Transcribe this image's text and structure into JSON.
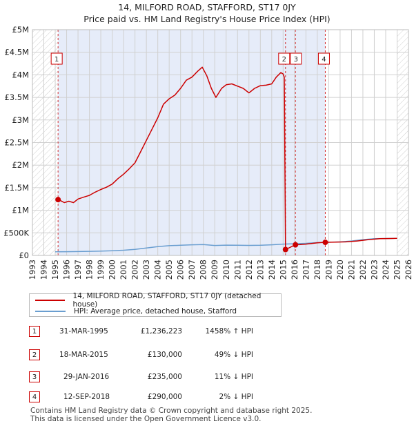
{
  "title": {
    "line1": "14, MILFORD ROAD, STAFFORD, ST17 0JY",
    "line2": "Price paid vs. HM Land Registry's House Price Index (HPI)"
  },
  "colors": {
    "property": "#cc0000",
    "hpi": "#6a9ed0",
    "shade": "#dde6f7",
    "grid": "#d0d0d0"
  },
  "chart_data": {
    "type": "line",
    "ylim": [
      0,
      5000000
    ],
    "xlim": [
      1993,
      2026
    ],
    "ytick_values": [
      0,
      500000,
      1000000,
      1500000,
      2000000,
      2500000,
      3000000,
      3500000,
      4000000,
      4500000,
      5000000
    ],
    "ytick_labels": [
      "£0",
      "£500K",
      "£1M",
      "£1.5M",
      "£2M",
      "£2.5M",
      "£3M",
      "£3.5M",
      "£4M",
      "£4.5M",
      "£5M"
    ],
    "xtick_labels": [
      "1993",
      "1994",
      "1995",
      "1996",
      "1997",
      "1998",
      "1999",
      "2000",
      "2001",
      "2002",
      "2003",
      "2004",
      "2005",
      "2006",
      "2007",
      "2008",
      "2009",
      "2010",
      "2011",
      "2012",
      "2013",
      "2014",
      "2015",
      "2016",
      "2017",
      "2018",
      "2019",
      "2020",
      "2021",
      "2022",
      "2023",
      "2024",
      "2025",
      "2026"
    ],
    "shaded_range": [
      1995.25,
      2018.7
    ],
    "hatched_ranges": [
      [
        1993,
        1995.25
      ],
      [
        2025.0,
        2026
      ]
    ],
    "series": [
      {
        "name": "14, MILFORD ROAD, STAFFORD, ST17 0JY (detached house)",
        "color": "#cc0000",
        "points": [
          [
            1995.25,
            1236223
          ],
          [
            1995.5,
            1210000
          ],
          [
            1995.8,
            1170000
          ],
          [
            1996.2,
            1200000
          ],
          [
            1996.6,
            1170000
          ],
          [
            1997.0,
            1250000
          ],
          [
            1997.5,
            1290000
          ],
          [
            1998.0,
            1330000
          ],
          [
            1998.5,
            1400000
          ],
          [
            1999.0,
            1460000
          ],
          [
            1999.5,
            1510000
          ],
          [
            2000.0,
            1580000
          ],
          [
            2000.5,
            1700000
          ],
          [
            2001.0,
            1800000
          ],
          [
            2001.5,
            1920000
          ],
          [
            2002.0,
            2050000
          ],
          [
            2002.5,
            2300000
          ],
          [
            2003.0,
            2550000
          ],
          [
            2003.5,
            2800000
          ],
          [
            2004.0,
            3050000
          ],
          [
            2004.5,
            3350000
          ],
          [
            2005.0,
            3470000
          ],
          [
            2005.5,
            3550000
          ],
          [
            2006.0,
            3700000
          ],
          [
            2006.5,
            3880000
          ],
          [
            2007.0,
            3950000
          ],
          [
            2007.5,
            4080000
          ],
          [
            2007.9,
            4170000
          ],
          [
            2008.3,
            3980000
          ],
          [
            2008.7,
            3700000
          ],
          [
            2009.1,
            3500000
          ],
          [
            2009.6,
            3700000
          ],
          [
            2010.0,
            3780000
          ],
          [
            2010.5,
            3800000
          ],
          [
            2011.0,
            3750000
          ],
          [
            2011.5,
            3700000
          ],
          [
            2012.0,
            3600000
          ],
          [
            2012.5,
            3700000
          ],
          [
            2013.0,
            3760000
          ],
          [
            2013.5,
            3770000
          ],
          [
            2014.0,
            3800000
          ],
          [
            2014.4,
            3950000
          ],
          [
            2014.8,
            4050000
          ],
          [
            2015.0,
            4020000
          ],
          [
            2015.1,
            3950000
          ],
          [
            2015.21,
            130000
          ],
          [
            2016.08,
            235000
          ],
          [
            2016.5,
            240000
          ],
          [
            2017.0,
            250000
          ],
          [
            2017.5,
            265000
          ],
          [
            2018.0,
            280000
          ],
          [
            2018.7,
            290000
          ],
          [
            2019.5,
            295000
          ],
          [
            2020.5,
            300000
          ],
          [
            2021.5,
            320000
          ],
          [
            2022.5,
            350000
          ],
          [
            2023.5,
            370000
          ],
          [
            2024.5,
            375000
          ],
          [
            2025.0,
            378000
          ]
        ]
      },
      {
        "name": "HPI: Average price, detached house, Stafford",
        "color": "#6a9ed0",
        "points": [
          [
            1995.0,
            80000
          ],
          [
            1996.0,
            82000
          ],
          [
            1997.0,
            85000
          ],
          [
            1998.0,
            90000
          ],
          [
            1999.0,
            95000
          ],
          [
            2000.0,
            103000
          ],
          [
            2001.0,
            115000
          ],
          [
            2002.0,
            135000
          ],
          [
            2003.0,
            165000
          ],
          [
            2004.0,
            195000
          ],
          [
            2005.0,
            215000
          ],
          [
            2006.0,
            225000
          ],
          [
            2007.0,
            235000
          ],
          [
            2008.0,
            240000
          ],
          [
            2009.0,
            220000
          ],
          [
            2010.0,
            228000
          ],
          [
            2011.0,
            225000
          ],
          [
            2012.0,
            222000
          ],
          [
            2013.0,
            225000
          ],
          [
            2014.0,
            235000
          ],
          [
            2015.0,
            250000
          ],
          [
            2016.0,
            258000
          ],
          [
            2017.0,
            268000
          ],
          [
            2018.0,
            285000
          ],
          [
            2019.0,
            292000
          ],
          [
            2020.0,
            300000
          ],
          [
            2021.0,
            320000
          ],
          [
            2022.0,
            350000
          ],
          [
            2023.0,
            370000
          ],
          [
            2024.0,
            375000
          ],
          [
            2025.0,
            378000
          ]
        ]
      }
    ],
    "sale_markers": [
      {
        "label": "1",
        "x": 1995.25,
        "y": 1236223
      },
      {
        "label": "2",
        "x": 2015.21,
        "y": 130000
      },
      {
        "label": "3",
        "x": 2016.08,
        "y": 235000
      },
      {
        "label": "4",
        "x": 2018.7,
        "y": 290000
      }
    ]
  },
  "legend": {
    "property_label": "14, MILFORD ROAD, STAFFORD, ST17 0JY (detached house)",
    "hpi_label": "HPI: Average price, detached house, Stafford"
  },
  "sales": [
    {
      "num": "1",
      "date": "31-MAR-1995",
      "price": "£1,236,223",
      "hpi": "1458% ↑ HPI"
    },
    {
      "num": "2",
      "date": "18-MAR-2015",
      "price": "£130,000",
      "hpi": "49% ↓ HPI"
    },
    {
      "num": "3",
      "date": "29-JAN-2016",
      "price": "£235,000",
      "hpi": "11% ↓ HPI"
    },
    {
      "num": "4",
      "date": "12-SEP-2018",
      "price": "£290,000",
      "hpi": "2% ↓ HPI"
    }
  ],
  "footer": {
    "line1": "Contains HM Land Registry data © Crown copyright and database right 2025.",
    "line2": "This data is licensed under the Open Government Licence v3.0."
  }
}
